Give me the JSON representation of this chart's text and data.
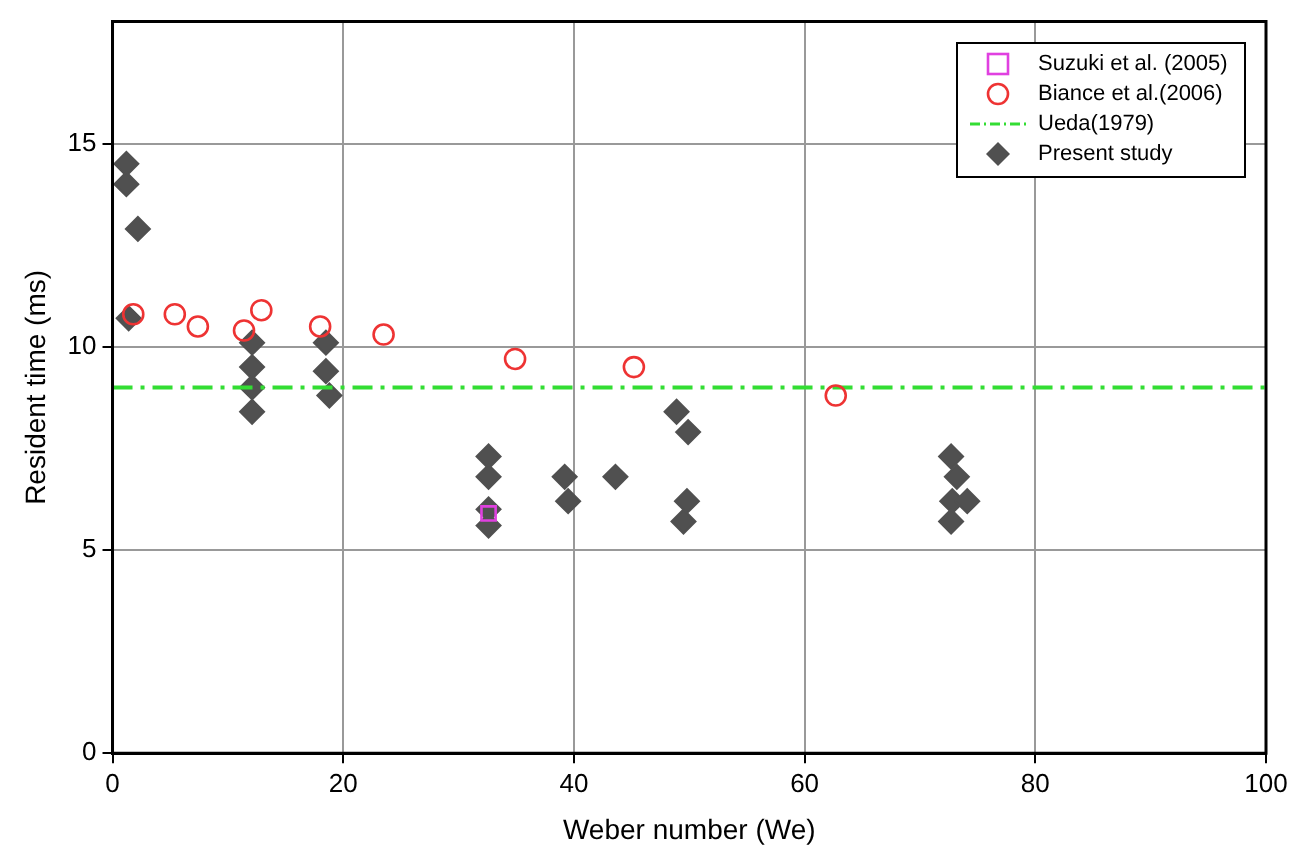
{
  "chart_data": {
    "type": "scatter",
    "xlabel": "Weber number (We)",
    "ylabel": "Resident time (ms)",
    "xlim": [
      0,
      100
    ],
    "xticks": [
      0,
      20,
      40,
      60,
      80,
      100
    ],
    "ylim": [
      0,
      18
    ],
    "yticks": [
      0,
      5,
      10,
      15
    ],
    "grid": true,
    "legend": "top right",
    "series": [
      {
        "name": "Suzuki et al. (2005)",
        "color": "#e040e0",
        "marker": "square",
        "x": [
          32.6
        ],
        "values": [
          5.9
        ]
      },
      {
        "name": "Biance et al.(2006)",
        "color": "#ee3333",
        "marker": "circle",
        "x": [
          1.8,
          5.4,
          7.4,
          11.4,
          12.9,
          18.0,
          23.5,
          34.9,
          45.2,
          62.7
        ],
        "values": [
          10.8,
          10.8,
          10.5,
          10.4,
          10.9,
          10.5,
          10.3,
          9.7,
          9.5,
          8.8
        ]
      },
      {
        "name": "Ueda(1979)",
        "type": "line",
        "color": "#33dd33",
        "line_style": "dashdot",
        "marker": "none",
        "x": [
          0,
          100
        ],
        "values": [
          9.0,
          9.0
        ]
      },
      {
        "name": "Present study",
        "color": "#505050",
        "marker": "diamond",
        "x": [
          1.2,
          1.2,
          2.2,
          1.4,
          12.1,
          12.1,
          12.1,
          12.1,
          18.5,
          18.5,
          18.8,
          32.6,
          32.6,
          32.6,
          32.6,
          39.2,
          39.5,
          43.6,
          48.9,
          49.9,
          49.8,
          49.5,
          72.7,
          73.2,
          72.8,
          74.1,
          72.7
        ],
        "values": [
          14.5,
          14.0,
          12.9,
          10.7,
          10.1,
          9.5,
          9.0,
          8.4,
          10.1,
          9.4,
          8.8,
          7.3,
          6.8,
          6.0,
          5.6,
          6.8,
          6.2,
          6.8,
          8.4,
          7.9,
          6.2,
          5.7,
          7.3,
          6.8,
          6.2,
          6.2,
          5.7
        ]
      }
    ]
  }
}
